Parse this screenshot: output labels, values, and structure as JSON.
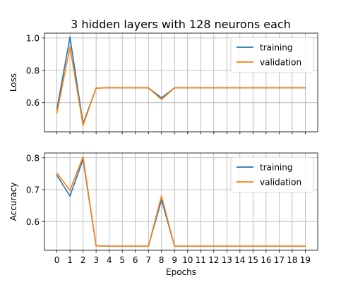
{
  "figure": {
    "title": "3 hidden layers with 128 neurons each"
  },
  "colors": {
    "training": "#1f77b4",
    "validation": "#ff7f0e",
    "grid": "#b0b0b0",
    "frame": "#000000"
  },
  "chart_data": [
    {
      "type": "line",
      "title": "3 hidden layers with 128 neurons each",
      "xlabel": "",
      "ylabel": "Loss",
      "x": [
        0,
        1,
        2,
        3,
        4,
        5,
        6,
        7,
        8,
        9,
        10,
        11,
        12,
        13,
        14,
        15,
        16,
        17,
        18,
        19
      ],
      "xlim": [
        -0.95,
        19.95
      ],
      "ylim": [
        0.42,
        1.03
      ],
      "yticks": [
        0.6,
        0.8,
        1.0
      ],
      "ytick_labels": [
        "0.6",
        "0.8",
        "1.0"
      ],
      "grid": true,
      "legend": "top-right",
      "series": [
        {
          "name": "training",
          "color_key": "training",
          "values": [
            0.56,
            1.005,
            0.47,
            0.69,
            0.693,
            0.692,
            0.692,
            0.692,
            0.63,
            0.692,
            0.692,
            0.692,
            0.692,
            0.692,
            0.692,
            0.692,
            0.692,
            0.692,
            0.692,
            0.692
          ]
        },
        {
          "name": "validation",
          "color_key": "validation",
          "values": [
            0.535,
            0.945,
            0.46,
            0.69,
            0.693,
            0.692,
            0.692,
            0.692,
            0.62,
            0.692,
            0.692,
            0.692,
            0.692,
            0.692,
            0.692,
            0.692,
            0.692,
            0.692,
            0.692,
            0.692
          ]
        }
      ]
    },
    {
      "type": "line",
      "title": "",
      "xlabel": "Epochs",
      "ylabel": "Accuracy",
      "x": [
        0,
        1,
        2,
        3,
        4,
        5,
        6,
        7,
        8,
        9,
        10,
        11,
        12,
        13,
        14,
        15,
        16,
        17,
        18,
        19
      ],
      "xlim": [
        -0.95,
        19.95
      ],
      "ylim": [
        0.51,
        0.815
      ],
      "yticks": [
        0.6,
        0.7,
        0.8
      ],
      "ytick_labels": [
        "0.6",
        "0.7",
        "0.8"
      ],
      "xtick_labels": [
        "0",
        "1",
        "2",
        "3",
        "4",
        "5",
        "6",
        "7",
        "8",
        "9",
        "10",
        "11",
        "12",
        "13",
        "14",
        "15",
        "16",
        "17",
        "18",
        "19"
      ],
      "grid": true,
      "legend": "top-right",
      "series": [
        {
          "name": "training",
          "color_key": "training",
          "values": [
            0.745,
            0.68,
            0.795,
            0.524,
            0.523,
            0.523,
            0.523,
            0.523,
            0.668,
            0.523,
            0.523,
            0.523,
            0.523,
            0.523,
            0.523,
            0.523,
            0.523,
            0.523,
            0.523,
            0.523
          ]
        },
        {
          "name": "validation",
          "color_key": "validation",
          "values": [
            0.752,
            0.698,
            0.803,
            0.524,
            0.523,
            0.523,
            0.523,
            0.523,
            0.68,
            0.523,
            0.523,
            0.523,
            0.523,
            0.523,
            0.523,
            0.523,
            0.523,
            0.523,
            0.523,
            0.523
          ]
        }
      ]
    }
  ]
}
